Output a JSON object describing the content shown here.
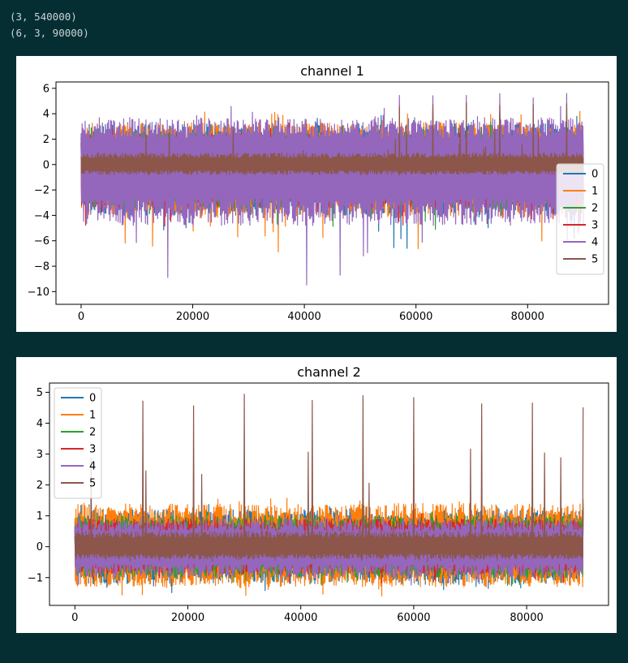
{
  "notebook": {
    "output_lines": [
      "(3, 540000)",
      "(6, 3, 90000)"
    ]
  },
  "chart_data": [
    {
      "type": "line",
      "title": "channel 1",
      "xlabel": "",
      "ylabel": "",
      "xlim": [
        -4500,
        94500
      ],
      "ylim": [
        -11,
        6.5
      ],
      "xticks": [
        0,
        20000,
        40000,
        60000,
        80000
      ],
      "xtick_labels": [
        "0",
        "20000",
        "40000",
        "60000",
        "80000"
      ],
      "yticks": [
        6,
        4,
        2,
        0,
        -2,
        -4,
        -6,
        -8,
        -10
      ],
      "ytick_labels": [
        "6",
        "4",
        "2",
        "0",
        "−2",
        "−4",
        "−6",
        "−8",
        "−10"
      ],
      "x_range": [
        0,
        90000
      ],
      "legend_placement": "center-right",
      "grid": false,
      "series": [
        {
          "name": "0",
          "color": "#1f77b4",
          "upper": 3.2,
          "lower": -4.0,
          "spike_high": 4.3,
          "spike_low": -6.6,
          "seed": 11
        },
        {
          "name": "1",
          "color": "#ff7f0e",
          "upper": 3.3,
          "lower": -4.2,
          "spike_high": 4.8,
          "spike_low": -7.0,
          "seed": 23
        },
        {
          "name": "2",
          "color": "#2ca02c",
          "upper": 2.6,
          "lower": -3.5,
          "spike_high": 4.2,
          "spike_low": -5.5,
          "seed": 37
        },
        {
          "name": "3",
          "color": "#d62728",
          "upper": 2.5,
          "lower": -3.4,
          "spike_high": 4.0,
          "spike_low": -5.0,
          "seed": 41
        },
        {
          "name": "4",
          "color": "#9467bd",
          "upper": 3.7,
          "lower": -4.8,
          "spike_high": 5.6,
          "spike_low": -10.2,
          "seed": 53
        },
        {
          "name": "5",
          "color": "#8c564b",
          "upper": 0.9,
          "lower": -0.8,
          "spike_high": 5.0,
          "spike_low": -0.6,
          "seed": 67
        }
      ]
    },
    {
      "type": "line",
      "title": "channel 2",
      "xlabel": "",
      "ylabel": "",
      "xlim": [
        -4500,
        94500
      ],
      "ylim": [
        -1.9,
        5.3
      ],
      "xticks": [
        0,
        20000,
        40000,
        60000,
        80000
      ],
      "xtick_labels": [
        "0",
        "20000",
        "40000",
        "60000",
        "80000"
      ],
      "yticks": [
        5,
        4,
        3,
        2,
        1,
        0,
        -1
      ],
      "ytick_labels": [
        "5",
        "4",
        "3",
        "2",
        "1",
        "0",
        "−1"
      ],
      "x_range": [
        0,
        90000
      ],
      "legend_placement": "upper-left",
      "grid": false,
      "series": [
        {
          "name": "0",
          "color": "#1f77b4",
          "upper": 1.2,
          "lower": -1.2,
          "spike_high": 1.5,
          "spike_low": -1.5,
          "seed": 13
        },
        {
          "name": "1",
          "color": "#ff7f0e",
          "upper": 1.4,
          "lower": -1.3,
          "spike_high": 1.7,
          "spike_low": -1.6,
          "seed": 29
        },
        {
          "name": "2",
          "color": "#2ca02c",
          "upper": 1.0,
          "lower": -1.0,
          "spike_high": 1.3,
          "spike_low": -1.3,
          "seed": 31
        },
        {
          "name": "3",
          "color": "#d62728",
          "upper": 0.9,
          "lower": -0.9,
          "spike_high": 1.2,
          "spike_low": -1.2,
          "seed": 43
        },
        {
          "name": "4",
          "color": "#9467bd",
          "upper": 0.9,
          "lower": -1.0,
          "spike_high": 1.2,
          "spike_low": -1.3,
          "seed": 59
        },
        {
          "name": "5",
          "color": "#8c564b",
          "upper": 0.5,
          "lower": -0.4,
          "spike_high": 5.0,
          "spike_low": -0.5,
          "seed": 71
        }
      ]
    }
  ]
}
